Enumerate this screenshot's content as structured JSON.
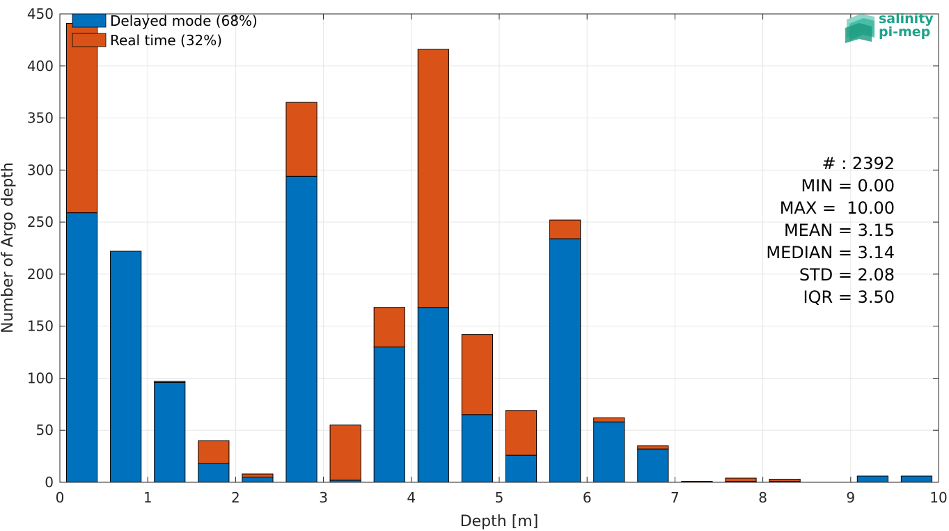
{
  "colors": {
    "delayed": "#0072BD",
    "realtime": "#D95319",
    "logo": "#1fa38a"
  },
  "logo": {
    "line1": "salinity",
    "line2": "pi-mep"
  },
  "stats": [
    "# : 2392",
    "MIN = 0.00",
    "MAX =  10.00",
    "MEAN = 3.15",
    "MEDIAN = 3.14",
    "STD = 2.08",
    "IQR = 3.50"
  ],
  "chart_data": {
    "type": "bar",
    "stacked": true,
    "xlabel": "Depth [m]",
    "ylabel": "Number of Argo depth",
    "xlim": [
      0,
      10
    ],
    "ylim": [
      0,
      450
    ],
    "xticks": [
      0,
      1,
      2,
      3,
      4,
      5,
      6,
      7,
      8,
      9,
      10
    ],
    "yticks": [
      0,
      50,
      100,
      150,
      200,
      250,
      300,
      350,
      400,
      450
    ],
    "grid": true,
    "legend_position": "top-left",
    "bin_width": 0.5,
    "bar_width": 0.35,
    "x": [
      0.25,
      0.75,
      1.25,
      1.75,
      2.25,
      2.75,
      3.25,
      3.75,
      4.25,
      4.75,
      5.25,
      5.75,
      6.25,
      6.75,
      7.25,
      7.75,
      8.25,
      8.75,
      9.25,
      9.75
    ],
    "series": [
      {
        "name": "Delayed mode (68%)",
        "values": [
          259,
          222,
          96,
          18,
          5,
          294,
          2,
          130,
          168,
          65,
          26,
          234,
          58,
          32,
          0,
          1,
          1,
          0,
          6,
          6
        ]
      },
      {
        "name": "Real time (32%)",
        "values": [
          182,
          0,
          1,
          22,
          3,
          71,
          53,
          38,
          248,
          77,
          43,
          18,
          4,
          3,
          1,
          3,
          2,
          0,
          0,
          0
        ]
      }
    ]
  }
}
